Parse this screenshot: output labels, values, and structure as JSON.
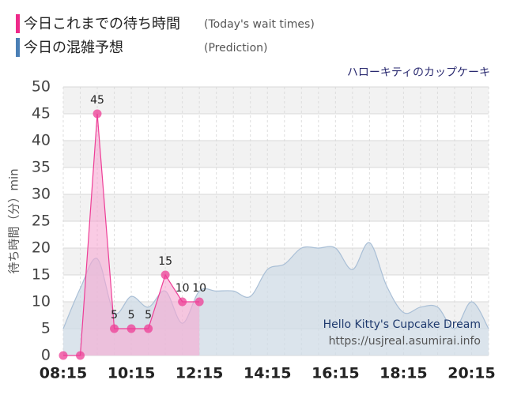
{
  "chart_data": {
    "type": "line",
    "annotation": "ハローキティのカップケーキ",
    "watermark_title": "Hello Kitty's Cupcake Dream",
    "watermark_url": "https://usjreal.asumirai.info",
    "y_label": "待ち時間（分）min",
    "categories": [
      "08:15",
      null,
      null,
      null,
      "10:15",
      null,
      null,
      null,
      "12:15",
      null,
      null,
      null,
      "14:15",
      null,
      null,
      null,
      "16:15",
      null,
      null,
      null,
      "18:15",
      null,
      null,
      null,
      "20:15",
      null
    ],
    "series": [
      {
        "name": "今日これまでの待ち時間",
        "name_en": "(Today's wait times)",
        "color": "#ee3d96",
        "fill": "#f7a8d2",
        "style": "line-markers",
        "data_labels": true,
        "values": [
          0,
          0,
          45,
          5,
          5,
          5,
          15,
          10,
          10,
          null,
          null,
          null,
          null,
          null,
          null,
          null,
          null,
          null,
          null,
          null,
          null,
          null,
          null,
          null,
          null,
          null
        ]
      },
      {
        "name": "今日の混雑予想",
        "name_en": "(Prediction)",
        "color": "#4a7fb5",
        "fill": "#cfdbe6",
        "style": "area-smooth",
        "values": [
          5,
          12.5,
          18,
          8,
          11,
          9,
          12,
          6,
          12,
          12,
          12,
          11,
          16,
          17,
          20,
          20,
          20,
          16,
          21,
          13,
          8,
          9,
          9,
          5,
          10,
          5
        ]
      }
    ],
    "ylim": [
      0,
      50
    ],
    "yticks": [
      0,
      5,
      10,
      15,
      20,
      25,
      30,
      35,
      40,
      45,
      50
    ],
    "grid": true
  }
}
